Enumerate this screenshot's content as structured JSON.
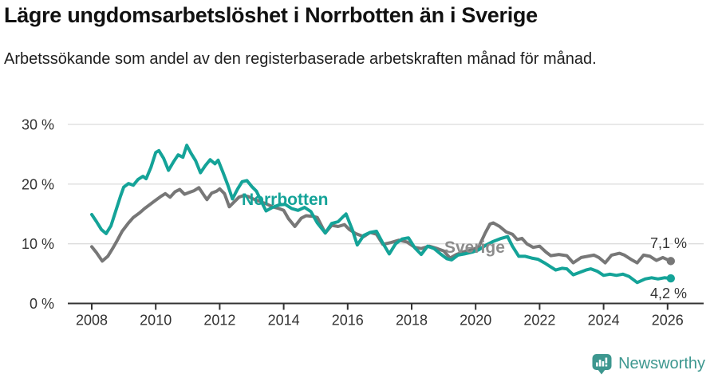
{
  "header": {
    "title": "Lägre ungdomsarbetslöshet i Norrbotten än i Sverige",
    "subtitle": "Arbetssökande som andel av den registerbaserade arbetskraften månad för månad."
  },
  "footer": {
    "brand": "Newsworthy",
    "brand_color": "#3d978f",
    "logo_icon": "bar-chart-speech-bubble-icon"
  },
  "colors": {
    "norrbotten": "#14a398",
    "sverige": "#777777",
    "sverige_label": "#8c8c8c",
    "axis": "#333333",
    "gridline": "#dcdcdc",
    "background": "#ffffff"
  },
  "chart_data": {
    "type": "line",
    "title": "Lägre ungdomsarbetslöshet i Norrbotten än i Sverige",
    "subtitle": "Arbetssökande som andel av den registerbaserade arbetskraften månad för månad.",
    "xlabel": "",
    "ylabel": "",
    "ylim": [
      0,
      30
    ],
    "xlim": [
      2007.25,
      2027.1
    ],
    "grid": "horizontal",
    "legend_position": "inline-labels",
    "y_ticks": [
      {
        "value": 0,
        "label": "0 %"
      },
      {
        "value": 10,
        "label": "10 %"
      },
      {
        "value": 20,
        "label": "20 %"
      },
      {
        "value": 30,
        "label": "30 %"
      }
    ],
    "x_ticks": [
      {
        "value": 2008,
        "label": "2008"
      },
      {
        "value": 2010,
        "label": "2010"
      },
      {
        "value": 2012,
        "label": "2012"
      },
      {
        "value": 2014,
        "label": "2014"
      },
      {
        "value": 2016,
        "label": "2016"
      },
      {
        "value": 2018,
        "label": "2018"
      },
      {
        "value": 2020,
        "label": "2020"
      },
      {
        "value": 2022,
        "label": "2022"
      },
      {
        "value": 2024,
        "label": "2024"
      },
      {
        "value": 2026,
        "label": "2026"
      }
    ],
    "series": [
      {
        "name": "Sverige",
        "color": "#777777",
        "label_color": "#8c8c8c",
        "end_label": "7,1 %",
        "end_value": 7.1,
        "points": [
          [
            2008.0,
            9.5
          ],
          [
            2008.15,
            8.5
          ],
          [
            2008.33,
            7.1
          ],
          [
            2008.5,
            7.9
          ],
          [
            2008.65,
            9.2
          ],
          [
            2008.8,
            10.6
          ],
          [
            2008.95,
            12.1
          ],
          [
            2009.15,
            13.5
          ],
          [
            2009.3,
            14.4
          ],
          [
            2009.5,
            15.2
          ],
          [
            2009.65,
            15.9
          ],
          [
            2009.85,
            16.7
          ],
          [
            2010.0,
            17.3
          ],
          [
            2010.15,
            17.9
          ],
          [
            2010.3,
            18.4
          ],
          [
            2010.45,
            17.8
          ],
          [
            2010.6,
            18.7
          ],
          [
            2010.75,
            19.1
          ],
          [
            2010.9,
            18.3
          ],
          [
            2011.05,
            18.6
          ],
          [
            2011.2,
            18.9
          ],
          [
            2011.35,
            19.4
          ],
          [
            2011.5,
            18.2
          ],
          [
            2011.6,
            17.4
          ],
          [
            2011.75,
            18.5
          ],
          [
            2011.9,
            18.8
          ],
          [
            2012.0,
            19.2
          ],
          [
            2012.15,
            18.4
          ],
          [
            2012.3,
            16.2
          ],
          [
            2012.45,
            17.0
          ],
          [
            2012.6,
            17.8
          ],
          [
            2012.75,
            18.1
          ],
          [
            2012.9,
            17.9
          ],
          [
            2013.05,
            17.5
          ],
          [
            2013.25,
            17.1
          ],
          [
            2013.45,
            16.7
          ],
          [
            2013.65,
            16.2
          ],
          [
            2013.85,
            15.9
          ],
          [
            2014.0,
            15.6
          ],
          [
            2014.15,
            14.2
          ],
          [
            2014.35,
            12.9
          ],
          [
            2014.55,
            14.3
          ],
          [
            2014.7,
            14.7
          ],
          [
            2014.9,
            14.6
          ],
          [
            2015.05,
            14.4
          ],
          [
            2015.3,
            11.8
          ],
          [
            2015.5,
            13.1
          ],
          [
            2015.7,
            12.9
          ],
          [
            2015.9,
            13.2
          ],
          [
            2016.05,
            12.4
          ],
          [
            2016.25,
            11.7
          ],
          [
            2016.5,
            11.2
          ],
          [
            2016.7,
            11.9
          ],
          [
            2016.9,
            11.6
          ],
          [
            2017.1,
            9.9
          ],
          [
            2017.35,
            10.2
          ],
          [
            2017.6,
            10.6
          ],
          [
            2017.85,
            10.3
          ],
          [
            2018.1,
            9.4
          ],
          [
            2018.3,
            9.2
          ],
          [
            2018.55,
            9.6
          ],
          [
            2018.8,
            9.2
          ],
          [
            2019.0,
            8.8
          ],
          [
            2019.2,
            7.6
          ],
          [
            2019.4,
            8.2
          ],
          [
            2019.65,
            8.7
          ],
          [
            2019.9,
            9.0
          ],
          [
            2020.1,
            9.5
          ],
          [
            2020.3,
            11.8
          ],
          [
            2020.45,
            13.3
          ],
          [
            2020.55,
            13.5
          ],
          [
            2020.75,
            12.9
          ],
          [
            2020.95,
            12.0
          ],
          [
            2021.15,
            11.6
          ],
          [
            2021.3,
            10.7
          ],
          [
            2021.45,
            10.9
          ],
          [
            2021.6,
            10.0
          ],
          [
            2021.8,
            9.4
          ],
          [
            2022.0,
            9.6
          ],
          [
            2022.2,
            8.6
          ],
          [
            2022.35,
            8.0
          ],
          [
            2022.6,
            8.2
          ],
          [
            2022.85,
            8.0
          ],
          [
            2023.05,
            6.8
          ],
          [
            2023.3,
            7.7
          ],
          [
            2023.5,
            7.9
          ],
          [
            2023.7,
            8.1
          ],
          [
            2023.85,
            7.7
          ],
          [
            2024.05,
            6.8
          ],
          [
            2024.25,
            8.1
          ],
          [
            2024.5,
            8.4
          ],
          [
            2024.65,
            8.1
          ],
          [
            2024.85,
            7.4
          ],
          [
            2025.05,
            6.8
          ],
          [
            2025.25,
            8.1
          ],
          [
            2025.45,
            7.9
          ],
          [
            2025.65,
            7.2
          ],
          [
            2025.85,
            7.7
          ],
          [
            2026.1,
            7.1
          ]
        ]
      },
      {
        "name": "Norrbotten",
        "color": "#14a398",
        "label_color": "#14a398",
        "end_label": "4,2 %",
        "end_value": 4.2,
        "points": [
          [
            2008.0,
            14.9
          ],
          [
            2008.15,
            13.7
          ],
          [
            2008.3,
            12.4
          ],
          [
            2008.45,
            11.7
          ],
          [
            2008.6,
            13.0
          ],
          [
            2008.75,
            15.5
          ],
          [
            2008.9,
            18.0
          ],
          [
            2009.0,
            19.5
          ],
          [
            2009.15,
            20.1
          ],
          [
            2009.3,
            19.8
          ],
          [
            2009.45,
            20.8
          ],
          [
            2009.6,
            21.3
          ],
          [
            2009.7,
            20.9
          ],
          [
            2009.85,
            22.8
          ],
          [
            2010.0,
            25.3
          ],
          [
            2010.1,
            25.6
          ],
          [
            2010.25,
            24.3
          ],
          [
            2010.4,
            22.3
          ],
          [
            2010.55,
            23.7
          ],
          [
            2010.7,
            24.9
          ],
          [
            2010.85,
            24.5
          ],
          [
            2010.97,
            26.5
          ],
          [
            2011.1,
            25.2
          ],
          [
            2011.25,
            23.9
          ],
          [
            2011.4,
            21.9
          ],
          [
            2011.55,
            23.1
          ],
          [
            2011.7,
            24.1
          ],
          [
            2011.85,
            23.4
          ],
          [
            2011.95,
            24.0
          ],
          [
            2012.1,
            22.0
          ],
          [
            2012.25,
            19.9
          ],
          [
            2012.4,
            17.5
          ],
          [
            2012.55,
            19.1
          ],
          [
            2012.7,
            20.4
          ],
          [
            2012.85,
            20.6
          ],
          [
            2013.0,
            19.6
          ],
          [
            2013.15,
            18.8
          ],
          [
            2013.3,
            17.1
          ],
          [
            2013.45,
            15.5
          ],
          [
            2013.65,
            16.1
          ],
          [
            2013.85,
            16.5
          ],
          [
            2014.05,
            16.6
          ],
          [
            2014.25,
            15.9
          ],
          [
            2014.45,
            15.6
          ],
          [
            2014.65,
            16.1
          ],
          [
            2014.85,
            15.4
          ],
          [
            2015.05,
            13.5
          ],
          [
            2015.3,
            11.8
          ],
          [
            2015.5,
            13.4
          ],
          [
            2015.7,
            13.7
          ],
          [
            2015.85,
            14.5
          ],
          [
            2015.95,
            15.0
          ],
          [
            2016.15,
            12.3
          ],
          [
            2016.3,
            9.8
          ],
          [
            2016.5,
            11.4
          ],
          [
            2016.7,
            11.9
          ],
          [
            2016.9,
            12.1
          ],
          [
            2017.1,
            10.1
          ],
          [
            2017.3,
            8.3
          ],
          [
            2017.5,
            10.0
          ],
          [
            2017.7,
            10.8
          ],
          [
            2017.9,
            11.0
          ],
          [
            2018.1,
            9.3
          ],
          [
            2018.3,
            8.2
          ],
          [
            2018.5,
            9.6
          ],
          [
            2018.7,
            9.2
          ],
          [
            2018.9,
            8.3
          ],
          [
            2019.1,
            7.5
          ],
          [
            2019.25,
            7.3
          ],
          [
            2019.45,
            8.1
          ],
          [
            2019.65,
            8.3
          ],
          [
            2019.9,
            8.6
          ],
          [
            2020.1,
            9.0
          ],
          [
            2020.3,
            9.7
          ],
          [
            2020.55,
            10.4
          ],
          [
            2020.8,
            10.9
          ],
          [
            2021.0,
            11.2
          ],
          [
            2021.15,
            9.6
          ],
          [
            2021.35,
            7.9
          ],
          [
            2021.55,
            7.9
          ],
          [
            2021.75,
            7.6
          ],
          [
            2021.95,
            7.4
          ],
          [
            2022.15,
            6.8
          ],
          [
            2022.3,
            6.3
          ],
          [
            2022.5,
            5.6
          ],
          [
            2022.7,
            5.9
          ],
          [
            2022.85,
            5.8
          ],
          [
            2023.05,
            4.8
          ],
          [
            2023.25,
            5.2
          ],
          [
            2023.45,
            5.6
          ],
          [
            2023.6,
            5.8
          ],
          [
            2023.8,
            5.4
          ],
          [
            2024.0,
            4.7
          ],
          [
            2024.2,
            4.9
          ],
          [
            2024.4,
            4.7
          ],
          [
            2024.6,
            4.9
          ],
          [
            2024.8,
            4.5
          ],
          [
            2025.05,
            3.5
          ],
          [
            2025.3,
            4.1
          ],
          [
            2025.5,
            4.3
          ],
          [
            2025.7,
            4.1
          ],
          [
            2025.9,
            4.3
          ],
          [
            2026.1,
            4.2
          ]
        ]
      }
    ],
    "annotations": [
      {
        "text": "Norrbotten",
        "series": "Norrbotten"
      },
      {
        "text": "Sverige",
        "series": "Sverige"
      }
    ]
  }
}
